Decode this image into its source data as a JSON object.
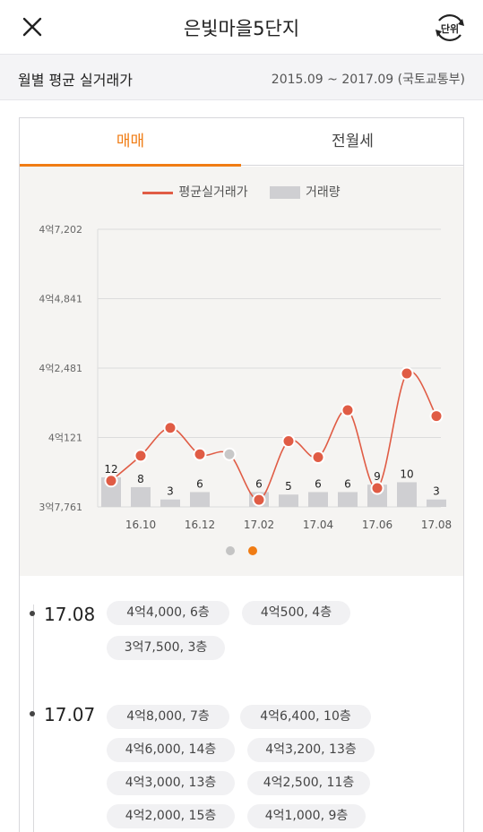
{
  "header": {
    "title": "은빛마을5단지",
    "unit_label": "단위"
  },
  "subheader": {
    "label": "월별 평균 실거래가",
    "range": "2015.09 ~ 2017.09 (국토교통부)"
  },
  "tabs": [
    {
      "label": "매매",
      "active": true
    },
    {
      "label": "전월세",
      "active": false
    }
  ],
  "colors": {
    "accent": "#f07c14",
    "line": "#e05c45",
    "bar": "#cfcfd2",
    "dot_inactive": "#c4c4c4"
  },
  "chart_data": {
    "type": "line",
    "legend": {
      "line": "평균실거래가",
      "bar": "거래량"
    },
    "y_ticks": [
      "4억7,202",
      "4억4,841",
      "4억2,481",
      "4억121",
      "3억7,761"
    ],
    "y_tick_values": [
      47202,
      44841,
      42481,
      40121,
      37761
    ],
    "ylim": [
      37761,
      47202
    ],
    "x_tick_labels": [
      "16.10",
      "16.12",
      "17.02",
      "17.04",
      "17.06",
      "17.08"
    ],
    "months": [
      "16.09",
      "16.10",
      "16.11",
      "16.12",
      "17.01",
      "17.02",
      "17.03",
      "17.04",
      "17.05",
      "17.06",
      "17.07",
      "17.08"
    ],
    "price": [
      38650,
      39500,
      40450,
      39550,
      39550,
      38000,
      40000,
      39450,
      41050,
      38400,
      42300,
      40850
    ],
    "price_no_trade": [
      false,
      false,
      false,
      false,
      true,
      false,
      false,
      false,
      false,
      false,
      false,
      false
    ],
    "volume": [
      12,
      8,
      3,
      6,
      0,
      6,
      5,
      6,
      6,
      9,
      10,
      3
    ],
    "volume_labels": [
      "12",
      "8",
      "3",
      "6",
      "",
      "6",
      "5",
      "6",
      "6",
      "9",
      "10",
      "3"
    ],
    "grid": true
  },
  "transactions": [
    {
      "month": "17.08",
      "items": [
        "4억4,000, 6층",
        "4억500, 4층",
        "3억7,500, 3층"
      ]
    },
    {
      "month": "17.07",
      "items": [
        "4억8,000, 7층",
        "4억6,400, 10층",
        "4억6,000, 14층",
        "4억3,200, 13층",
        "4억3,000, 13층",
        "4억2,500, 11층",
        "4억2,000, 15층",
        "4억1,000, 9층"
      ]
    }
  ]
}
